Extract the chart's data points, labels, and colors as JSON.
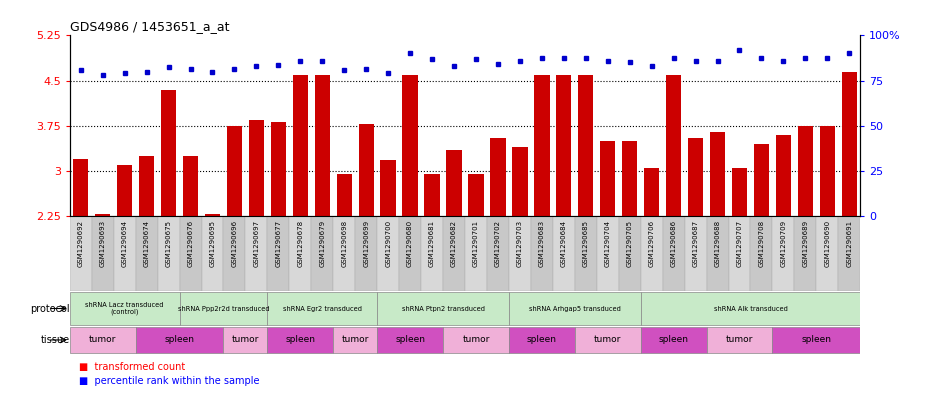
{
  "title": "GDS4986 / 1453651_a_at",
  "samples": [
    "GSM1290692",
    "GSM1290693",
    "GSM1290694",
    "GSM1290674",
    "GSM1290675",
    "GSM1290676",
    "GSM1290695",
    "GSM1290696",
    "GSM1290697",
    "GSM1290677",
    "GSM1290678",
    "GSM1290679",
    "GSM1290698",
    "GSM1290699",
    "GSM1290700",
    "GSM1290680",
    "GSM1290681",
    "GSM1290682",
    "GSM1290701",
    "GSM1290702",
    "GSM1290703",
    "GSM1290683",
    "GSM1290684",
    "GSM1290685",
    "GSM1290704",
    "GSM1290705",
    "GSM1290706",
    "GSM1290686",
    "GSM1290687",
    "GSM1290688",
    "GSM1290707",
    "GSM1290708",
    "GSM1290709",
    "GSM1290689",
    "GSM1290690",
    "GSM1290691"
  ],
  "bar_values": [
    3.2,
    2.28,
    3.1,
    3.25,
    4.35,
    3.25,
    2.28,
    3.75,
    3.85,
    3.82,
    4.6,
    4.6,
    2.95,
    3.78,
    3.18,
    4.6,
    2.95,
    3.35,
    2.95,
    3.55,
    3.4,
    4.6,
    4.6,
    4.6,
    3.5,
    3.5,
    3.05,
    4.6,
    3.55,
    3.65,
    3.05,
    3.45,
    3.6,
    3.75,
    3.75,
    4.65
  ],
  "percentile_values": [
    4.68,
    4.6,
    4.62,
    4.64,
    4.72,
    4.7,
    4.65,
    4.7,
    4.74,
    4.76,
    4.82,
    4.82,
    4.68,
    4.7,
    4.62,
    4.95,
    4.85,
    4.75,
    4.85,
    4.78,
    4.82,
    4.88,
    4.88,
    4.88,
    4.82,
    4.8,
    4.75,
    4.88,
    4.82,
    4.82,
    5.0,
    4.88,
    4.82,
    4.88,
    4.88,
    4.95
  ],
  "ylim": [
    2.25,
    5.25
  ],
  "yticks": [
    2.25,
    3.0,
    3.75,
    4.5,
    5.25
  ],
  "ytick_labels": [
    "2.25",
    "3",
    "3.75",
    "4.5",
    "5.25"
  ],
  "right_yticks_pct": [
    0,
    25,
    50,
    75,
    100
  ],
  "right_ytick_labels": [
    "0",
    "25",
    "50",
    "75",
    "100%"
  ],
  "gridlines": [
    3.0,
    3.75,
    4.5
  ],
  "protocols": [
    {
      "label": "shRNA Lacz transduced\n(control)",
      "start": 0,
      "end": 5,
      "color": "#c8eac8"
    },
    {
      "label": "shRNA Ppp2r2d transduced",
      "start": 5,
      "end": 9,
      "color": "#c8eac8"
    },
    {
      "label": "shRNA Egr2 transduced",
      "start": 9,
      "end": 14,
      "color": "#c8eac8"
    },
    {
      "label": "shRNA Ptpn2 transduced",
      "start": 14,
      "end": 20,
      "color": "#c8eac8"
    },
    {
      "label": "shRNA Arhgap5 transduced",
      "start": 20,
      "end": 26,
      "color": "#c8eac8"
    },
    {
      "label": "shRNA Alk transduced",
      "start": 26,
      "end": 36,
      "color": "#c8eac8"
    }
  ],
  "tissues": [
    {
      "label": "tumor",
      "start": 0,
      "end": 3,
      "color": "#f0b0d8"
    },
    {
      "label": "spleen",
      "start": 3,
      "end": 7,
      "color": "#d050c0"
    },
    {
      "label": "tumor",
      "start": 7,
      "end": 9,
      "color": "#f0b0d8"
    },
    {
      "label": "spleen",
      "start": 9,
      "end": 12,
      "color": "#d050c0"
    },
    {
      "label": "tumor",
      "start": 12,
      "end": 14,
      "color": "#f0b0d8"
    },
    {
      "label": "spleen",
      "start": 14,
      "end": 17,
      "color": "#d050c0"
    },
    {
      "label": "tumor",
      "start": 17,
      "end": 20,
      "color": "#f0b0d8"
    },
    {
      "label": "spleen",
      "start": 20,
      "end": 23,
      "color": "#d050c0"
    },
    {
      "label": "tumor",
      "start": 23,
      "end": 26,
      "color": "#f0b0d8"
    },
    {
      "label": "spleen",
      "start": 26,
      "end": 29,
      "color": "#d050c0"
    },
    {
      "label": "tumor",
      "start": 29,
      "end": 32,
      "color": "#f0b0d8"
    },
    {
      "label": "spleen",
      "start": 32,
      "end": 36,
      "color": "#d050c0"
    }
  ],
  "bar_color": "#cc0000",
  "dot_color": "#0000cc",
  "bg_color": "#ffffff",
  "xticklabel_bg": "#d8d8d8"
}
